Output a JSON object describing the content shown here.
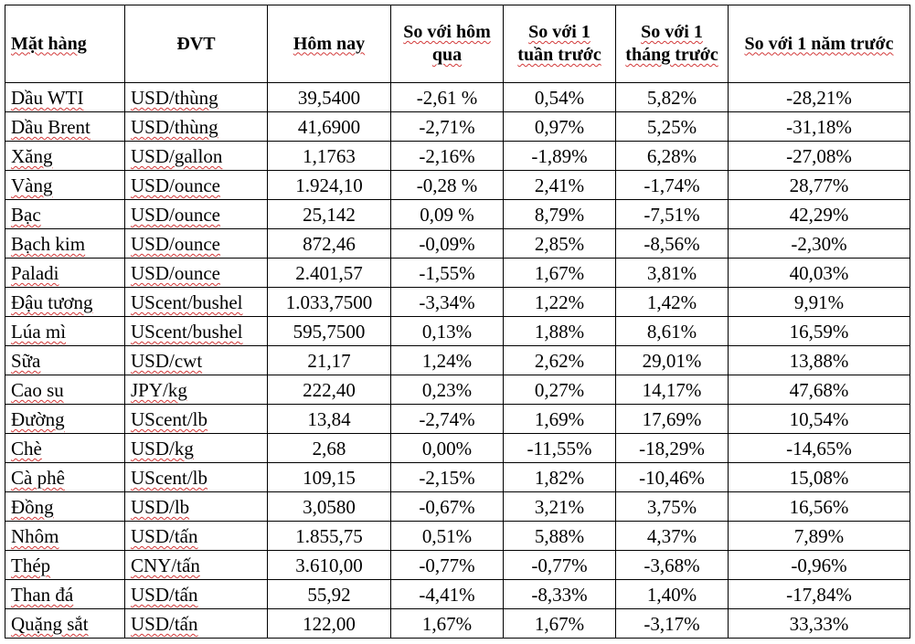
{
  "headers": {
    "item": "Mặt hàng",
    "unit": "ĐVT",
    "today": "Hôm nay",
    "vs_yesterday": "So với hôm qua",
    "vs_week": "So với 1 tuần trước",
    "vs_month": "So với 1 tháng trước",
    "vs_year": "So với 1 năm trước"
  },
  "rows": [
    {
      "item": "Dầu WTI",
      "unit": "USD/thùng",
      "today": "39,5400",
      "day": "-2,61 %",
      "week": "0,54%",
      "month": "5,82%",
      "year": "-28,21%"
    },
    {
      "item": "Dầu Brent",
      "unit": "USD/thùng",
      "today": "41,6900",
      "day": "-2,71%",
      "week": "0,97%",
      "month": "5,25%",
      "year": "-31,18%"
    },
    {
      "item": "Xăng",
      "unit": "USD/gallon",
      "today": "1,1763",
      "day": "-2,16%",
      "week": "-1,89%",
      "month": "6,28%",
      "year": "-27,08%"
    },
    {
      "item": "Vàng",
      "unit": "USD/ounce",
      "today": "1.924,10",
      "day": "-0,28 %",
      "week": "2,41%",
      "month": "-1,74%",
      "year": "28,77%"
    },
    {
      "item": "Bạc",
      "unit": "USD/ounce",
      "today": "25,142",
      "day": "0,09 %",
      "week": "8,79%",
      "month": "-7,51%",
      "year": "42,29%"
    },
    {
      "item": "Bạch kim",
      "unit": "USD/ounce",
      "today": "872,46",
      "day": "-0,09%",
      "week": "2,85%",
      "month": "-8,56%",
      "year": "-2,30%"
    },
    {
      "item": "Paladi",
      "unit": "USD/ounce",
      "today": "2.401,57",
      "day": "-1,55%",
      "week": "1,67%",
      "month": "3,81%",
      "year": "40,03%"
    },
    {
      "item": "Đậu tương",
      "unit": "UScent/bushel",
      "today": "1.033,7500",
      "day": "-3,34%",
      "week": "1,22%",
      "month": "1,42%",
      "year": "9,91%"
    },
    {
      "item": "Lúa mì",
      "unit": "UScent/bushel",
      "today": "595,7500",
      "day": "0,13%",
      "week": "1,88%",
      "month": "8,61%",
      "year": "16,59%"
    },
    {
      "item": "Sữa",
      "unit": "USD/cwt",
      "today": "21,17",
      "day": "1,24%",
      "week": "2,62%",
      "month": "29,01%",
      "year": "13,88%"
    },
    {
      "item": "Cao su",
      "unit": "JPY/kg",
      "today": "222,40",
      "day": "0,23%",
      "week": "0,27%",
      "month": "14,17%",
      "year": "47,68%"
    },
    {
      "item": "Đường",
      "unit": "UScent/lb",
      "today": "13,84",
      "day": "-2,74%",
      "week": "1,69%",
      "month": "17,69%",
      "year": "10,54%"
    },
    {
      "item": "Chè",
      "unit": "USD/kg",
      "today": "2,68",
      "day": "0,00%",
      "week": "-11,55%",
      "month": "-18,29%",
      "year": "-14,65%"
    },
    {
      "item": "Cà phê",
      "unit": "UScent/lb",
      "today": "109,15",
      "day": "-2,15%",
      "week": "1,82%",
      "month": "-10,46%",
      "year": "15,08%"
    },
    {
      "item": "Đồng",
      "unit": "USD/lb",
      "today": "3,0580",
      "day": "-0,67%",
      "week": "3,21%",
      "month": "3,75%",
      "year": "16,56%"
    },
    {
      "item": "Nhôm",
      "unit": "USD/tấn",
      "today": "1.855,75",
      "day": "0,51%",
      "week": "5,88%",
      "month": "4,37%",
      "year": "7,89%"
    },
    {
      "item": "Thép",
      "unit": "CNY/tấn",
      "today": "3.610,00",
      "day": "-0,77%",
      "week": "-0,77%",
      "month": "-3,68%",
      "year": "-0,96%"
    },
    {
      "item": "Than đá",
      "unit": "USD/tấn",
      "today": "55,92",
      "day": "-4,41%",
      "week": "-8,33%",
      "month": "1,40%",
      "year": "-17,84%"
    },
    {
      "item": "Quặng sắt",
      "unit": "USD/tấn",
      "today": "122,00",
      "day": "1,67%",
      "week": "1,67%",
      "month": "-3,17%",
      "year": "33,33%"
    }
  ],
  "colors": {
    "text": "#000000",
    "border": "#000000",
    "spellcheck_underline": "#d23a3a"
  }
}
